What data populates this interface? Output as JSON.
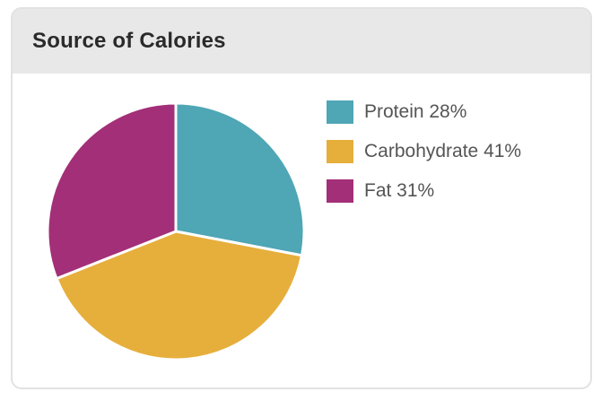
{
  "card": {
    "title": "Source of Calories"
  },
  "chart_data": {
    "type": "pie",
    "title": "Source of Calories",
    "slices": [
      {
        "label": "Protein",
        "value": 28,
        "color": "#4fa6b5"
      },
      {
        "label": "Carbohydrate",
        "value": 41,
        "color": "#e6af3c"
      },
      {
        "label": "Fat",
        "value": 31,
        "color": "#a32f78"
      }
    ],
    "legend": {
      "placement": "right",
      "entries": [
        "Protein 28%",
        "Carbohydrate 41%",
        "Fat 31%"
      ]
    }
  }
}
